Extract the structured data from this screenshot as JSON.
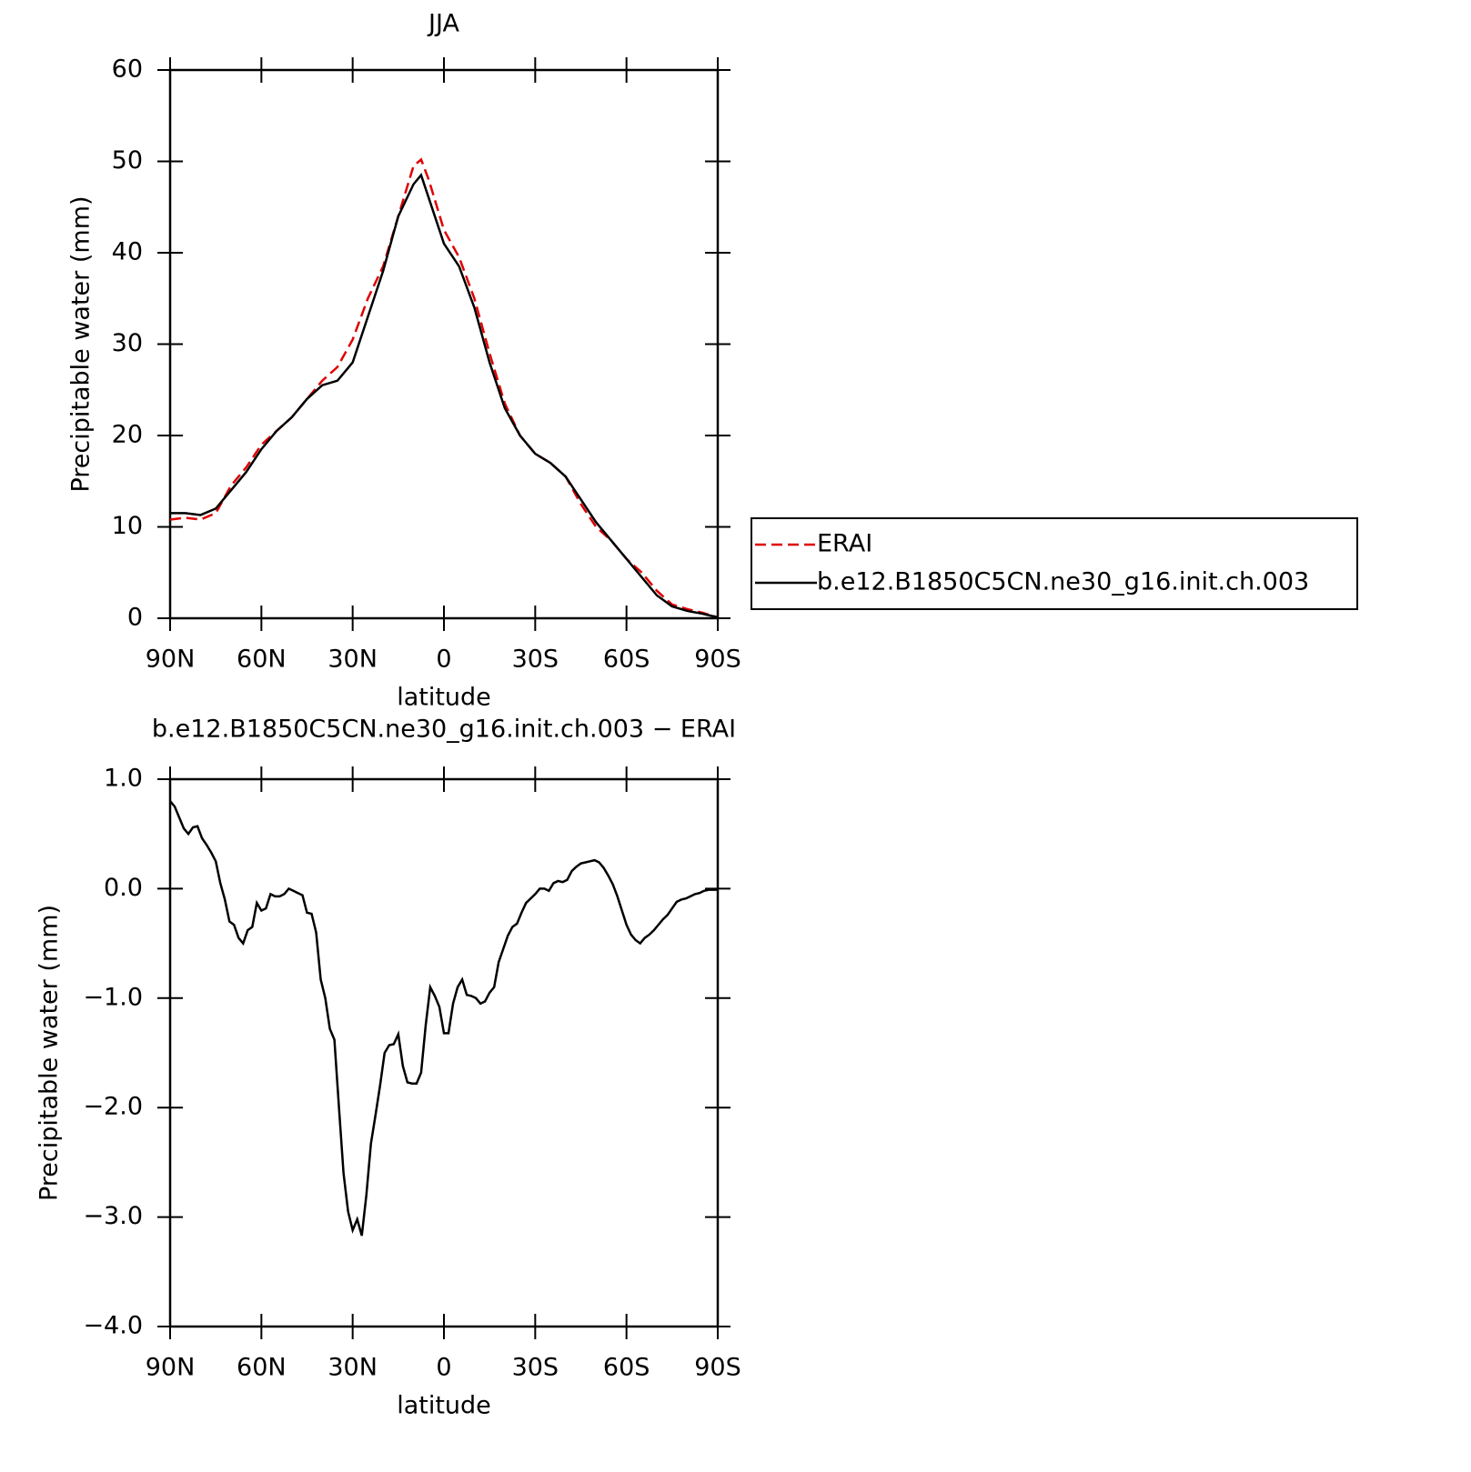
{
  "chart_data": [
    {
      "type": "line",
      "title": "JJA",
      "xlabel": "latitude",
      "ylabel": "Precipitable water (mm)",
      "x": [
        90,
        85,
        80,
        75,
        70,
        65,
        60,
        55,
        50,
        45,
        40,
        35,
        30,
        25,
        20,
        15,
        10,
        7.5,
        5,
        0,
        -5,
        -10,
        -15,
        -20,
        -25,
        -30,
        -35,
        -40,
        -45,
        -50,
        -55,
        -60,
        -65,
        -70,
        -75,
        -80,
        -85,
        -90
      ],
      "series": [
        {
          "name": "ERAI",
          "color": "#e00000",
          "linestyle": "dashed",
          "values": [
            10.8,
            11,
            10.8,
            11.5,
            14.5,
            16.5,
            19,
            20.5,
            22,
            24,
            26,
            27.5,
            30.5,
            35,
            38.5,
            44,
            49.5,
            50.2,
            48,
            42.5,
            39.5,
            35,
            29,
            23.5,
            20,
            18,
            17,
            15.5,
            12.5,
            10,
            8.5,
            6.5,
            5,
            3,
            1.5,
            1,
            0.6,
            0.1
          ]
        },
        {
          "name": "b.e12.B1850C5CN.ne30_g16.init.ch.003",
          "color": "#000000",
          "linestyle": "solid",
          "values": [
            11.5,
            11.5,
            11.3,
            12,
            14,
            16,
            18.5,
            20.5,
            22,
            24,
            25.5,
            26,
            28,
            33,
            38,
            44,
            47.5,
            48.5,
            46,
            41,
            38.5,
            34,
            28,
            23,
            20,
            18,
            17,
            15.5,
            13,
            10.5,
            8.5,
            6.5,
            4.5,
            2.5,
            1.3,
            0.8,
            0.5,
            0.1
          ]
        }
      ],
      "xlim": [
        90,
        -90
      ],
      "xticks": [
        {
          "value": 90,
          "label": "90N"
        },
        {
          "value": 60,
          "label": "60N"
        },
        {
          "value": 30,
          "label": "30N"
        },
        0,
        {
          "value": -30,
          "label": "30S"
        },
        {
          "value": -60,
          "label": "60S"
        },
        {
          "value": -90,
          "label": "90S"
        }
      ],
      "ylim": [
        0,
        60
      ],
      "yticks": [
        0,
        10,
        20,
        30,
        40,
        50,
        60
      ],
      "legend": "right"
    },
    {
      "type": "line",
      "title": "b.e12.B1850C5CN.ne30_g16.init.ch.003 − ERAI",
      "xlabel": "latitude",
      "ylabel": "Precipitable water (mm)",
      "x": [
        90,
        88.5,
        87,
        85.5,
        84,
        82.5,
        81,
        79.5,
        78,
        76.5,
        75,
        73.5,
        72,
        70.5,
        69,
        67.5,
        66,
        64.5,
        63,
        61.5,
        60,
        58.5,
        57,
        55.5,
        54,
        52.5,
        51,
        49.5,
        48,
        46.5,
        45,
        43.5,
        42,
        40.5,
        39,
        37.5,
        36,
        34.5,
        33,
        31.5,
        30,
        28.5,
        27,
        25.5,
        24,
        22.5,
        21,
        19.5,
        18,
        16.5,
        15,
        13.5,
        12,
        10.5,
        9,
        7.5,
        6,
        4.5,
        3,
        1.5,
        0,
        -1.5,
        -3,
        -4.5,
        -6,
        -7.5,
        -9,
        -10.5,
        -12,
        -13.5,
        -15,
        -16.5,
        -18,
        -19.5,
        -21,
        -22.5,
        -24,
        -25.5,
        -27,
        -28.5,
        -30,
        -31.5,
        -33,
        -34.5,
        -36,
        -37.5,
        -39,
        -40.5,
        -42,
        -43.5,
        -45,
        -46.5,
        -48,
        -49.5,
        -51,
        -52.5,
        -54,
        -55.5,
        -57,
        -58.5,
        -60,
        -61.5,
        -63,
        -64.5,
        -66,
        -67.5,
        -69,
        -70.5,
        -72,
        -73.5,
        -75,
        -76.5,
        -78,
        -79.5,
        -81,
        -82.5,
        -84,
        -85.5,
        -87,
        -88.5,
        -90
      ],
      "series": [
        {
          "name": null,
          "color": "#000000",
          "linestyle": "solid",
          "values": [
            0.8,
            0.75,
            0.65,
            0.55,
            0.5,
            0.56,
            0.57,
            0.46,
            0.4,
            0.33,
            0.25,
            0.05,
            -0.1,
            -0.3,
            -0.33,
            -0.45,
            -0.5,
            -0.38,
            -0.35,
            -0.13,
            -0.2,
            -0.18,
            -0.05,
            -0.07,
            -0.07,
            -0.05,
            0,
            -0.02,
            -0.04,
            -0.06,
            -0.22,
            -0.23,
            -0.4,
            -0.83,
            -1,
            -1.28,
            -1.38,
            -2,
            -2.6,
            -2.95,
            -3.12,
            -3.02,
            -3.17,
            -2.8,
            -2.33,
            -2.07,
            -1.8,
            -1.5,
            -1.43,
            -1.42,
            -1.33,
            -1.62,
            -1.77,
            -1.78,
            -1.78,
            -1.68,
            -1.25,
            -0.9,
            -0.98,
            -1.08,
            -1.32,
            -1.32,
            -1.05,
            -0.9,
            -0.83,
            -0.97,
            -0.98,
            -1,
            -1.05,
            -1.03,
            -0.95,
            -0.9,
            -0.67,
            -0.55,
            -0.43,
            -0.35,
            -0.32,
            -0.22,
            -0.13,
            -0.09,
            -0.05,
            0,
            0,
            -0.02,
            0.05,
            0.07,
            0.06,
            0.08,
            0.16,
            0.2,
            0.23,
            0.24,
            0.25,
            0.26,
            0.24,
            0.19,
            0.12,
            0.04,
            -0.07,
            -0.2,
            -0.33,
            -0.42,
            -0.47,
            -0.5,
            -0.45,
            -0.42,
            -0.38,
            -0.33,
            -0.28,
            -0.24,
            -0.18,
            -0.12,
            -0.1,
            -0.09,
            -0.07,
            -0.05,
            -0.04,
            -0.02,
            -0.01,
            -0.01,
            -0.01
          ]
        }
      ],
      "xlim": [
        90,
        -90
      ],
      "xticks": [
        {
          "value": 90,
          "label": "90N"
        },
        {
          "value": 60,
          "label": "60N"
        },
        {
          "value": 30,
          "label": "30N"
        },
        0,
        {
          "value": -30,
          "label": "30S"
        },
        {
          "value": -60,
          "label": "60S"
        },
        {
          "value": -90,
          "label": "90S"
        }
      ],
      "ylim": [
        -4,
        1
      ],
      "yticks": [
        {
          "value": -4,
          "label": "−4.0"
        },
        {
          "value": -3,
          "label": "−3.0"
        },
        {
          "value": -2,
          "label": "−2.0"
        },
        {
          "value": -1,
          "label": "−1.0"
        },
        {
          "value": 0,
          "label": "0.0"
        },
        {
          "value": 1,
          "label": "1.0"
        }
      ]
    }
  ]
}
